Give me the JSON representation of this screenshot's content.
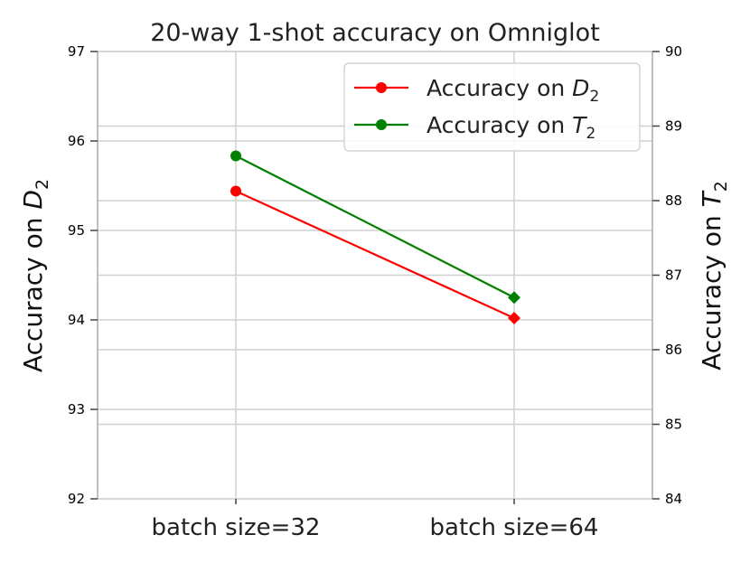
{
  "chart_data": {
    "type": "line",
    "title": "20-way 1-shot accuracy on Omniglot",
    "categories": [
      "batch size=32",
      "batch size=64"
    ],
    "y_left": {
      "label_base": "Accuracy on ",
      "label_var": "D",
      "label_sub": "2",
      "lim": [
        92,
        97
      ],
      "ticks": [
        92,
        93,
        94,
        95,
        96,
        97
      ]
    },
    "y_right": {
      "label_base": "Accuracy on ",
      "label_var": "T",
      "label_sub": "2",
      "lim": [
        84,
        90
      ],
      "ticks": [
        84,
        85,
        86,
        87,
        88,
        89,
        90
      ]
    },
    "series": [
      {
        "name": "Accuracy on D2",
        "legend_base": "Accuracy on ",
        "legend_var": "D",
        "legend_sub": "2",
        "axis": "left",
        "color": "#ff0000",
        "values": [
          95.44,
          94.02
        ]
      },
      {
        "name": "Accuracy on T2",
        "legend_base": "Accuracy on ",
        "legend_var": "T",
        "legend_sub": "2",
        "axis": "right",
        "color": "#008000",
        "values": [
          88.6,
          86.7
        ]
      }
    ],
    "grid": true,
    "legend_position": "top-right"
  }
}
